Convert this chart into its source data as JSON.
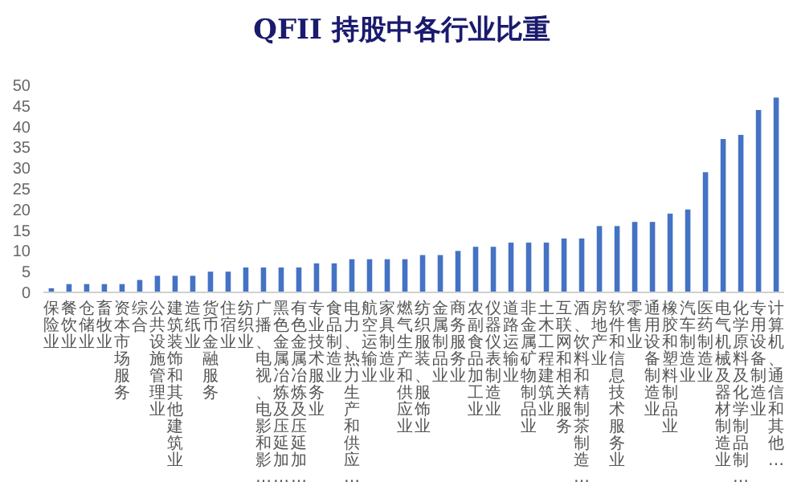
{
  "chart_data": {
    "type": "bar",
    "title": "QFII 持股中各行业比重",
    "categories": [
      "保险业",
      "餐饮业",
      "仓储业",
      "畜牧业",
      "资本市场服务",
      "综合",
      "公共设施管理业",
      "建筑装饰和其他建筑业",
      "造纸业",
      "货币金融服务",
      "住宿业",
      "纺织业",
      "广播、电视、电影和影…",
      "黑色金属冶炼及压延加…",
      "有色金属冶炼及压延加…",
      "专业技术服务业",
      "食品制造业",
      "电力、热力生产和供应…",
      "航空运输业",
      "家具制造业",
      "燃气生产和供应业",
      "纺织服装、服饰业",
      "金属制品业",
      "商务服务业",
      "农副食品加工业",
      "仪器仪表制造业",
      "道路运输业",
      "非金属矿物制品业",
      "土木工程建筑业",
      "互联网和相关服务",
      "酒、饮料和精制茶制造…",
      "房地产业",
      "软件和信息技术服务业",
      "零售业",
      "通用设备制造业",
      "橡胶和塑料制品业",
      "汽车制造业",
      "医药制造业",
      "电气机械及器材制造业",
      "化学原料及化学制品制…",
      "专用设备制造业",
      "计算机、通信和其他…"
    ],
    "values": [
      1,
      2,
      2,
      2,
      2,
      3,
      4,
      4,
      4,
      5,
      5,
      6,
      6,
      6,
      6,
      7,
      7,
      8,
      8,
      8,
      8,
      9,
      9,
      10,
      11,
      11,
      12,
      12,
      12,
      13,
      13,
      16,
      16,
      17,
      17,
      19,
      20,
      29,
      37,
      38,
      44,
      47
    ],
    "color": "#4472c4",
    "ylim": [
      0,
      50
    ],
    "yticks": [
      0,
      5,
      10,
      15,
      20,
      25,
      30,
      35,
      40,
      45,
      50
    ]
  }
}
